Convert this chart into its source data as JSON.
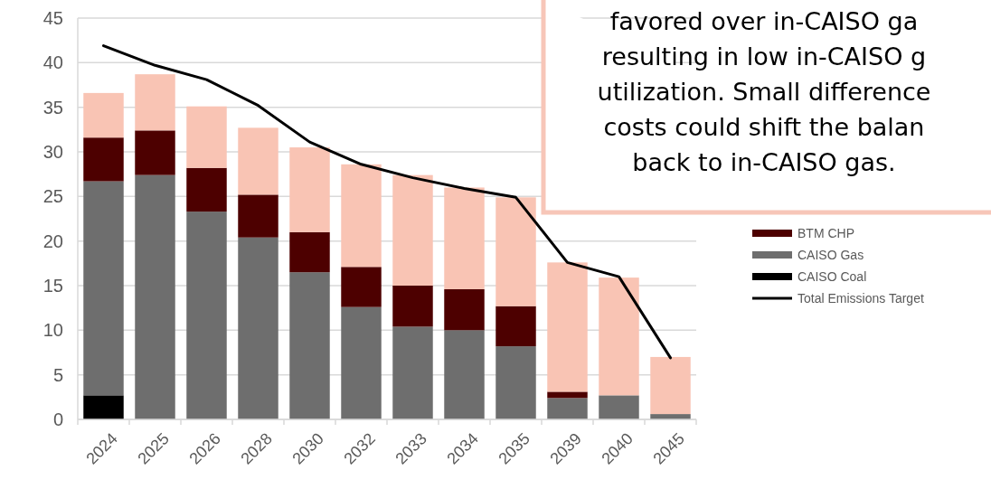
{
  "chart_data": {
    "type": "bar",
    "stacked": true,
    "categories": [
      "2024",
      "2025",
      "2026",
      "2028",
      "2030",
      "2032",
      "2033",
      "2034",
      "2035",
      "2039",
      "2040",
      "2045"
    ],
    "series": [
      {
        "name": "CAISO Coal",
        "color": "#000000",
        "values": [
          2.7,
          0,
          0,
          0,
          0,
          0,
          0,
          0,
          0,
          0,
          0,
          0
        ]
      },
      {
        "name": "CAISO Gas",
        "color": "#6e6e6e",
        "values": [
          24.0,
          27.4,
          23.3,
          20.4,
          16.5,
          12.6,
          10.4,
          10.0,
          8.2,
          2.4,
          2.7,
          0.6
        ]
      },
      {
        "name": "BTM CHP",
        "color": "#4d0000",
        "values": [
          4.9,
          5.0,
          4.9,
          4.8,
          4.5,
          4.5,
          4.6,
          4.6,
          4.5,
          0.7,
          0,
          0
        ]
      },
      {
        "color": "#f9c4b4",
        "values": [
          5.0,
          6.3,
          6.9,
          7.5,
          9.5,
          11.5,
          12.4,
          11.4,
          12.2,
          14.5,
          13.2,
          6.4
        ]
      },
      {
        "name": "Total Emissions Target",
        "type": "line",
        "color": "#000000",
        "values": [
          41.9,
          39.7,
          38.1,
          35.2,
          31.1,
          28.6,
          27.1,
          25.9,
          24.9,
          17.6,
          16.0,
          6.9
        ]
      }
    ],
    "ylim": [
      0,
      45
    ],
    "yticks": [
      0,
      5,
      10,
      15,
      20,
      25,
      30,
      35,
      40,
      45
    ],
    "grid": "y",
    "legend": "right",
    "annotations": [
      "favored over in-CAISO ga\nresulting in low in-CAISO g\nutilization.  Small difference\ncosts could shift the balan\nback to in-CAISO gas."
    ]
  }
}
